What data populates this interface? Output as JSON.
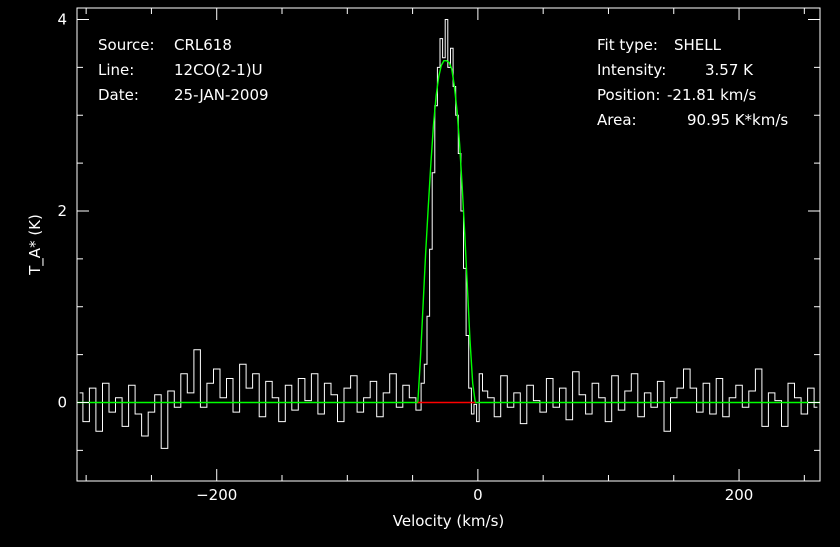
{
  "header": {
    "source_label": "Source:",
    "source_value": "CRL618",
    "line_label": "Line:",
    "line_value": "12CO(2-1)U",
    "date_label": "Date:",
    "date_value": "25-JAN-2009"
  },
  "fit": {
    "type_label": "Fit type:",
    "type_value": "SHELL",
    "intensity_label": "Intensity:",
    "intensity_value": "3.57 K",
    "position_label": "Position:",
    "position_value": "-21.81 km/s",
    "area_label": "Area:",
    "area_value": "90.95 K*km/s"
  },
  "colors": {
    "background": "#000000",
    "frame": "#ffffff",
    "spectrum": "#ffffff",
    "fit": "#00ff00",
    "baseline": "#ff0000"
  },
  "chart_data": {
    "type": "line",
    "xlabel": "Velocity (km/s)",
    "ylabel": "T_A* (K)",
    "xlim": [
      -307,
      262
    ],
    "ylim": [
      -0.82,
      4.12
    ],
    "x_ticks": [
      -200,
      0,
      200
    ],
    "y_ticks": [
      0,
      2,
      4
    ],
    "x_minor_step": 50,
    "y_minor_step": 0.5,
    "grid": false,
    "series": [
      {
        "style": "step",
        "color": "#ffffff",
        "x": [
          -305,
          -300,
          -295,
          -290,
          -285,
          -280,
          -275,
          -270,
          -265,
          -260,
          -255,
          -250,
          -245,
          -240,
          -235,
          -230,
          -225,
          -220,
          -215,
          -210,
          -205,
          -200,
          -195,
          -190,
          -185,
          -180,
          -175,
          -170,
          -165,
          -160,
          -155,
          -150,
          -145,
          -140,
          -135,
          -130,
          -125,
          -120,
          -115,
          -110,
          -105,
          -100,
          -95,
          -90,
          -85,
          -80,
          -75,
          -70,
          -65,
          -60,
          -55,
          -50,
          -45,
          -42,
          -40,
          -38,
          -36,
          -34,
          -32,
          -30,
          -28,
          -26,
          -24,
          -22,
          -20,
          -18,
          -16,
          -14,
          -12,
          -10,
          -8,
          -6,
          -4,
          -2,
          0,
          2,
          5,
          10,
          15,
          20,
          25,
          30,
          35,
          40,
          45,
          50,
          55,
          60,
          65,
          70,
          75,
          80,
          85,
          90,
          95,
          100,
          105,
          110,
          115,
          120,
          125,
          130,
          135,
          140,
          145,
          150,
          155,
          160,
          165,
          170,
          175,
          180,
          185,
          190,
          195,
          200,
          205,
          210,
          215,
          220,
          225,
          230,
          235,
          240,
          245,
          250,
          255,
          260
        ],
        "y": [
          0.1,
          -0.2,
          0.15,
          -0.3,
          0.2,
          -0.1,
          0.05,
          -0.25,
          0.18,
          -0.12,
          -0.35,
          -0.1,
          0.08,
          -0.48,
          0.12,
          -0.05,
          0.3,
          0.1,
          0.55,
          -0.05,
          0.2,
          0.35,
          0.05,
          0.25,
          -0.1,
          0.4,
          0.15,
          0.3,
          -0.15,
          0.22,
          0.05,
          -0.2,
          0.18,
          -0.08,
          0.25,
          0.02,
          0.3,
          -0.12,
          0.2,
          0.08,
          -0.2,
          0.15,
          0.28,
          -0.1,
          0.05,
          0.22,
          -0.15,
          0.1,
          0.3,
          -0.05,
          0.18,
          0.05,
          -0.08,
          0.2,
          0.4,
          0.9,
          1.6,
          2.4,
          3.1,
          3.5,
          3.8,
          3.6,
          4.0,
          3.5,
          3.7,
          3.3,
          3.0,
          2.6,
          2.0,
          1.4,
          0.7,
          0.15,
          -0.12,
          -0.02,
          -0.2,
          0.3,
          0.12,
          0.05,
          -0.15,
          0.28,
          -0.05,
          0.1,
          -0.22,
          0.18,
          0.02,
          -0.1,
          0.25,
          -0.05,
          0.15,
          -0.18,
          0.32,
          0.08,
          -0.12,
          0.2,
          0.05,
          -0.2,
          0.28,
          -0.08,
          0.12,
          0.3,
          -0.15,
          0.1,
          -0.05,
          0.22,
          -0.3,
          0.05,
          0.15,
          0.35,
          0.15,
          -0.1,
          0.2,
          -0.12,
          0.25,
          -0.15,
          0.05,
          0.18,
          -0.05,
          0.12,
          0.35,
          -0.25,
          0.1,
          0.02,
          -0.25,
          0.2,
          0.05,
          -0.12,
          0.15,
          -0.05
        ]
      },
      {
        "style": "line",
        "color": "#00ff00",
        "x": [
          -307,
          -46,
          -44,
          -42,
          -40,
          -38,
          -36,
          -34,
          -32,
          -30,
          -28,
          -26,
          -24,
          -22,
          -20,
          -18,
          -16,
          -14,
          -12,
          -10,
          -8,
          -6,
          -4,
          -2,
          262
        ],
        "y": [
          0,
          0,
          0.45,
          1.0,
          1.55,
          2.05,
          2.5,
          2.9,
          3.2,
          3.4,
          3.52,
          3.57,
          3.57,
          3.55,
          3.48,
          3.3,
          3.05,
          2.7,
          2.25,
          1.75,
          1.2,
          0.65,
          0.2,
          0,
          0
        ]
      },
      {
        "style": "line",
        "color": "#ff0000",
        "x": [
          -46,
          -2
        ],
        "y": [
          0,
          0
        ]
      }
    ]
  }
}
